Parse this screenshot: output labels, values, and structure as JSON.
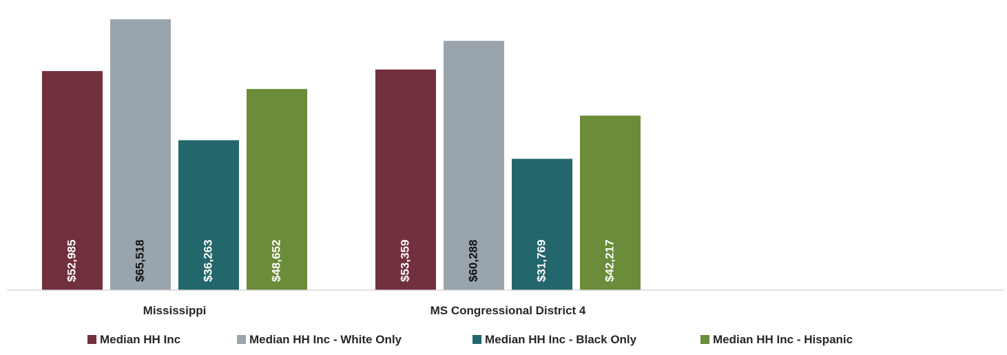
{
  "chart_data": {
    "type": "bar",
    "title": "",
    "xlabel": "",
    "ylabel": "",
    "ylim": [
      0,
      68000
    ],
    "grid": false,
    "legend_position": "bottom",
    "value_format": "currency-no-decimals",
    "categories": [
      "Mississippi",
      "MS Congressional District 4"
    ],
    "series": [
      {
        "name": "Median HH Inc",
        "color": "#722F3D",
        "label_color": "#ffffff",
        "values": [
          52985,
          53359
        ],
        "labels": [
          "$52,985",
          "$53,359"
        ]
      },
      {
        "name": "Median HH Inc - White Only",
        "color": "#9AA4AD",
        "label_color": "#111111",
        "values": [
          65518,
          60288
        ],
        "labels": [
          "$65,518",
          "$60,288"
        ]
      },
      {
        "name": "Median HH Inc - Black Only",
        "color": "#23666B",
        "label_color": "#ffffff",
        "values": [
          36263,
          31769
        ],
        "labels": [
          "$36,263",
          "$31,769"
        ]
      },
      {
        "name": "Median HH Inc - Hispanic",
        "color": "#6B8C3A",
        "label_color": "#ffffff",
        "values": [
          48652,
          42217
        ],
        "labels": [
          "$48,652",
          "$42,217"
        ]
      }
    ]
  }
}
